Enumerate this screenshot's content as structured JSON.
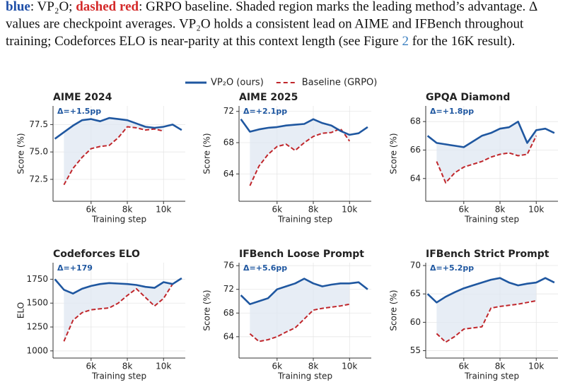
{
  "caption": {
    "lines": [
      [
        {
          "text": "blue",
          "color": "#1f4fa8",
          "bold": true
        },
        {
          "text": ": VP₂O; "
        },
        {
          "text": "dashed red",
          "color": "#d42a2a",
          "bold": true
        },
        {
          "text": ": GRPO baseline. Shaded region marks the leading method’s advantage. Δ"
        }
      ],
      [
        {
          "text": "values are checkpoint averages. VP₂O holds a consistent lead on AIME and IFBench throughout"
        }
      ],
      [
        {
          "text": "training; Codeforces ELO is near-parity at this context length (see Figure "
        },
        {
          "text": "2",
          "color": "#3a7fc0"
        },
        {
          "text": " for the 16K result)."
        }
      ]
    ]
  },
  "chart_data": [
    {
      "type": "line",
      "title": "AIME 2024",
      "annotation": "Δ=+1.5pp",
      "y_label": "Score (%)",
      "x_label": "Training step",
      "x": [
        4000,
        4500,
        5000,
        5500,
        6000,
        6500,
        7000,
        7500,
        8000,
        8500,
        9000,
        9500,
        10000,
        10500,
        11000
      ],
      "series": [
        {
          "name": "VP₂O (ours)",
          "color": "#1f57a0",
          "values": [
            76.2,
            76.8,
            77.4,
            77.9,
            78.0,
            77.8,
            78.1,
            78.0,
            77.9,
            77.6,
            77.3,
            77.2,
            77.3,
            77.5,
            77.0
          ]
        },
        {
          "name": "Baseline (GRPO)",
          "color": "#c0262b",
          "dashed": true,
          "values": [
            null,
            72.0,
            73.5,
            74.5,
            75.3,
            75.5,
            75.6,
            76.3,
            77.3,
            77.2,
            77.0,
            77.1,
            76.9,
            null,
            null
          ]
        }
      ],
      "xlim": [
        3900,
        11200
      ],
      "xticks": [
        {
          "value": 6000,
          "label": "6k"
        },
        {
          "value": 8000,
          "label": "8k"
        },
        {
          "value": 10000,
          "label": "10k"
        }
      ],
      "ylim": [
        70.5,
        79.2
      ],
      "yticks": [
        72.5,
        {
          "value": 75,
          "label": "75.0"
        },
        77.5
      ],
      "grid": true,
      "shade": true
    },
    {
      "type": "line",
      "title": "AIME 2025",
      "annotation": "Δ=+2.1pp",
      "y_label": "Score (%)",
      "x_label": "Training step",
      "x": [
        4000,
        4500,
        5000,
        5500,
        6000,
        6500,
        7000,
        7500,
        8000,
        8500,
        9000,
        9500,
        10000,
        10500,
        11000
      ],
      "series": [
        {
          "name": "VP₂O (ours)",
          "color": "#1f57a0",
          "values": [
            71.0,
            69.4,
            69.7,
            69.9,
            70.0,
            70.2,
            70.3,
            70.4,
            71.0,
            70.5,
            70.2,
            69.5,
            69.0,
            69.2,
            70.0
          ]
        },
        {
          "name": "Baseline (GRPO)",
          "color": "#c0262b",
          "dashed": true,
          "values": [
            null,
            62.5,
            65.0,
            66.5,
            67.5,
            67.8,
            67.0,
            68.0,
            68.8,
            69.2,
            69.3,
            69.8,
            68.2,
            null,
            null
          ]
        }
      ],
      "xlim": [
        3900,
        11200
      ],
      "xticks": [
        {
          "value": 6000,
          "label": "6k"
        },
        {
          "value": 8000,
          "label": "8k"
        },
        {
          "value": 10000,
          "label": "10k"
        }
      ],
      "ylim": [
        60.5,
        72.7
      ],
      "yticks": [
        64,
        68,
        72
      ],
      "grid": true,
      "shade": true
    },
    {
      "type": "line",
      "title": "GPQA Diamond",
      "annotation": "Δ=+1.8pp",
      "y_label": "Score (%)",
      "x_label": "Training step",
      "x": [
        4000,
        4500,
        5000,
        5500,
        6000,
        6500,
        7000,
        7500,
        8000,
        8500,
        9000,
        9500,
        10000,
        10500,
        11000
      ],
      "series": [
        {
          "name": "VP₂O (ours)",
          "color": "#1f57a0",
          "values": [
            67.0,
            66.5,
            66.4,
            66.3,
            66.2,
            66.6,
            67.0,
            67.2,
            67.5,
            67.6,
            68.0,
            66.5,
            67.4,
            67.5,
            67.2
          ]
        },
        {
          "name": "Baseline (GRPO)",
          "color": "#c0262b",
          "dashed": true,
          "values": [
            null,
            65.2,
            63.7,
            64.4,
            64.8,
            65.0,
            65.2,
            65.5,
            65.7,
            65.8,
            65.6,
            65.7,
            67.0,
            null,
            null
          ]
        }
      ],
      "xlim": [
        3900,
        11200
      ],
      "xticks": [
        {
          "value": 6000,
          "label": "6k"
        },
        {
          "value": 8000,
          "label": "8k"
        },
        {
          "value": 10000,
          "label": "10k"
        }
      ],
      "ylim": [
        62.4,
        69.1
      ],
      "yticks": [
        64,
        66,
        68
      ],
      "grid": true,
      "shade": true
    },
    {
      "type": "line",
      "title": "Codeforces ELO",
      "annotation": "Δ=+179",
      "y_label": "ELO",
      "x_label": "Training step",
      "x": [
        4000,
        4500,
        5000,
        5500,
        6000,
        6500,
        7000,
        7500,
        8000,
        8500,
        9000,
        9500,
        10000,
        10500,
        11000
      ],
      "series": [
        {
          "name": "VP₂O (ours)",
          "color": "#1f57a0",
          "values": [
            1750,
            1640,
            1600,
            1650,
            1680,
            1700,
            1710,
            1705,
            1700,
            1690,
            1670,
            1660,
            1720,
            1700,
            1760
          ]
        },
        {
          "name": "Baseline (GRPO)",
          "color": "#c0262b",
          "dashed": true,
          "values": [
            null,
            1100,
            1320,
            1400,
            1430,
            1440,
            1450,
            1500,
            1580,
            1650,
            1560,
            1470,
            1550,
            1700,
            null
          ]
        }
      ],
      "xlim": [
        3900,
        11200
      ],
      "xticks": [
        {
          "value": 6000,
          "label": "6k"
        },
        {
          "value": 8000,
          "label": "8k"
        },
        {
          "value": 10000,
          "label": "10k"
        }
      ],
      "ylim": [
        925,
        1923
      ],
      "yticks": [
        1000,
        1250,
        1500,
        1750
      ],
      "grid": true,
      "shade": true
    },
    {
      "type": "line",
      "title": "IFBench Loose Prompt",
      "annotation": "Δ=+5.6pp",
      "y_label": "Score (%)",
      "x_label": "Training step",
      "x": [
        4000,
        4500,
        5000,
        5500,
        6000,
        6500,
        7000,
        7500,
        8000,
        8500,
        9000,
        9500,
        10000,
        10500,
        11000
      ],
      "series": [
        {
          "name": "VP₂O (ours)",
          "color": "#1f57a0",
          "values": [
            71.0,
            69.5,
            70.0,
            70.5,
            72.0,
            72.5,
            73.0,
            73.8,
            73.0,
            72.5,
            72.8,
            73.0,
            73.0,
            73.2,
            72.0
          ]
        },
        {
          "name": "Baseline (GRPO)",
          "color": "#c0262b",
          "dashed": true,
          "values": [
            null,
            64.5,
            63.2,
            63.5,
            64.0,
            64.8,
            65.5,
            67.0,
            68.5,
            68.8,
            69.0,
            69.2,
            69.5,
            null,
            null
          ]
        }
      ],
      "xlim": [
        3900,
        11200
      ],
      "xticks": [
        {
          "value": 6000,
          "label": "6k"
        },
        {
          "value": 8000,
          "label": "8k"
        },
        {
          "value": 10000,
          "label": "10k"
        }
      ],
      "ylim": [
        60.4,
        76.5
      ],
      "yticks": [
        64,
        68,
        72,
        76
      ],
      "grid": true,
      "shade": true
    },
    {
      "type": "line",
      "title": "IFBench Strict Prompt",
      "annotation": "Δ=+5.2pp",
      "y_label": "Score (%)",
      "x_label": "Training step",
      "x": [
        4000,
        4500,
        5000,
        5500,
        6000,
        6500,
        7000,
        7500,
        8000,
        8500,
        9000,
        9500,
        10000,
        10500,
        11000
      ],
      "series": [
        {
          "name": "VP₂O (ours)",
          "color": "#1f57a0",
          "values": [
            65.0,
            63.5,
            64.5,
            65.3,
            66.0,
            66.5,
            67.0,
            67.5,
            67.8,
            67.0,
            66.5,
            66.8,
            67.0,
            67.8,
            67.0
          ]
        },
        {
          "name": "Baseline (GRPO)",
          "color": "#c0262b",
          "dashed": true,
          "values": [
            null,
            58.0,
            56.5,
            57.5,
            58.8,
            59.0,
            59.2,
            62.5,
            62.8,
            63.0,
            63.2,
            63.5,
            63.8,
            null,
            null
          ]
        }
      ],
      "xlim": [
        3900,
        11200
      ],
      "xticks": [
        {
          "value": 6000,
          "label": "6k"
        },
        {
          "value": 8000,
          "label": "8k"
        },
        {
          "value": 10000,
          "label": "10k"
        }
      ],
      "ylim": [
        53.7,
        70.5
      ],
      "yticks": [
        55,
        60,
        65,
        70
      ],
      "grid": true,
      "shade": true
    }
  ]
}
